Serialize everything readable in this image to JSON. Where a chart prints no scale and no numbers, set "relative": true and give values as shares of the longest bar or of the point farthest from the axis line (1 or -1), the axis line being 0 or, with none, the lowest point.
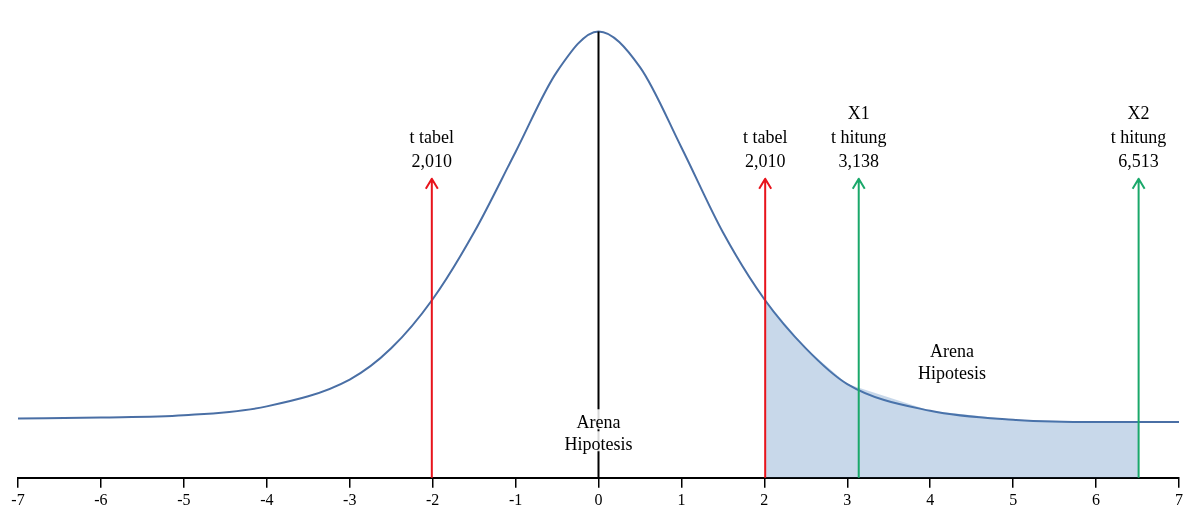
{
  "chart_data": {
    "type": "line",
    "relative": true,
    "x": [
      -7,
      -6,
      -5,
      -4,
      -3,
      -2.5,
      -2,
      -1.5,
      -1,
      -0.5,
      0,
      0.5,
      1,
      1.5,
      2,
      2.5,
      3,
      4,
      5,
      6,
      7
    ],
    "series": [
      {
        "color": "#4a6fa5",
        "values": [
          0.133,
          0.135,
          0.14,
          0.16,
          0.22,
          0.29,
          0.4,
          0.55,
          0.73,
          0.91,
          1,
          0.92,
          0.74,
          0.55,
          0.4,
          0.29,
          0.21,
          0.15,
          0.13,
          0.125,
          0.125
        ]
      }
    ],
    "xlim": [
      -7,
      7
    ],
    "xticks": [
      -7,
      -6,
      -5,
      -4,
      -3,
      -2,
      -1,
      0,
      1,
      2,
      3,
      4,
      5,
      6,
      7
    ],
    "grid": false,
    "marker": "none",
    "ref_lines": [
      {
        "axis": "x",
        "value": 0,
        "color": "#000000"
      },
      {
        "axis": "x",
        "value": -2.01,
        "label": "t tabel\n2,010",
        "color": "#e8141c"
      },
      {
        "axis": "x",
        "value": 2.01,
        "label": "t tabel\n2,010",
        "color": "#e8141c"
      },
      {
        "axis": "x",
        "value": 3.138,
        "label": "X1\nt hitung\n3,138",
        "color": "#1aa86a"
      },
      {
        "axis": "x",
        "value": 6.513,
        "label": "X2\nt hitung\n6,513",
        "color": "#1aa86a"
      }
    ],
    "bands": [
      {
        "axis": "x",
        "from": 2.01,
        "to": 6.513,
        "label": "Arena\nHipotesis",
        "color": "#4a7ebb"
      }
    ],
    "annotations": [
      {
        "text": "Arena\nHipotesis",
        "x": 0,
        "y": 0.1
      }
    ]
  }
}
